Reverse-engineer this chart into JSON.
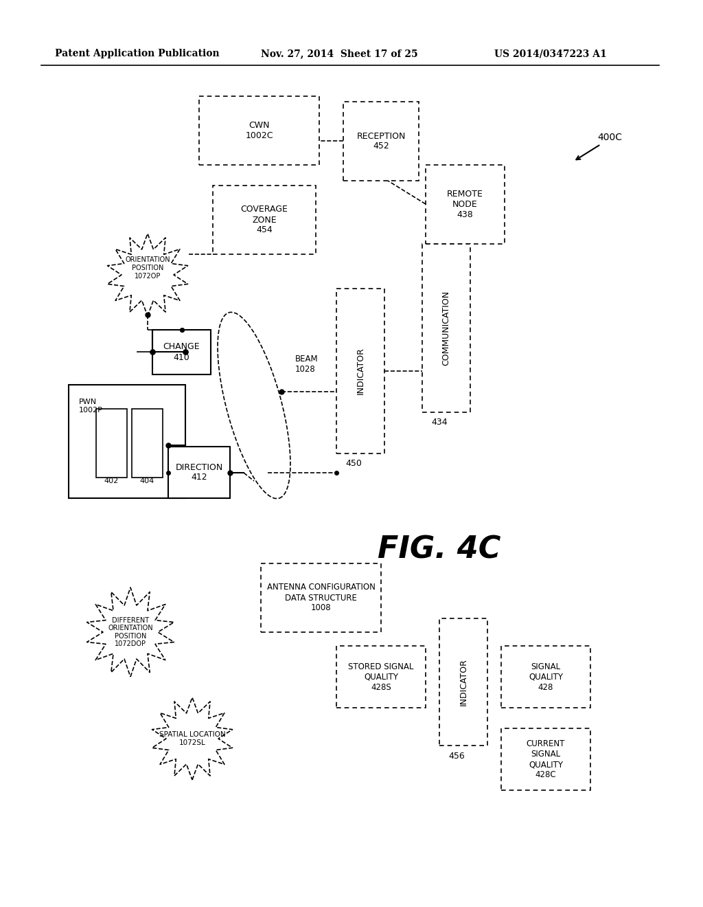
{
  "header_left": "Patent Application Publication",
  "header_mid": "Nov. 27, 2014  Sheet 17 of 25",
  "header_right": "US 2014/0347223 A1",
  "figure_label": "FIG. 4C",
  "ref_label": "400C",
  "background_color": "#ffffff",
  "text_color": "#000000"
}
